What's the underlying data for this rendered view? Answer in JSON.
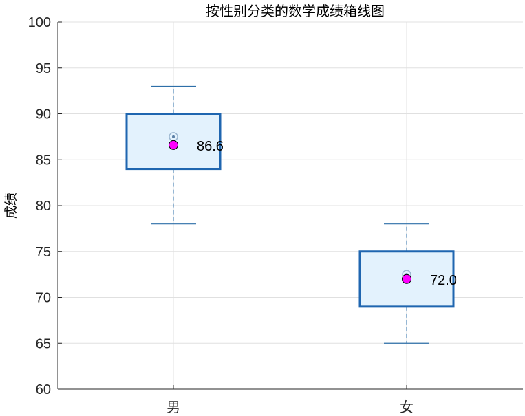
{
  "chart_data": {
    "type": "box",
    "title": "按性别分类的数学成绩箱线图",
    "xlabel": "",
    "ylabel": "成绩",
    "ylim": [
      60,
      100
    ],
    "yticks": [
      60,
      65,
      70,
      75,
      80,
      85,
      90,
      95,
      100
    ],
    "ytick_labels": [
      "60",
      "65",
      "70",
      "75",
      "80",
      "85",
      "90",
      "95",
      "100"
    ],
    "grid": true,
    "categories": [
      "男",
      "女"
    ],
    "boxes": [
      {
        "category": "男",
        "whisker_low": 78,
        "q1": 84,
        "median": 87.5,
        "q3": 90,
        "whisker_high": 93,
        "mean": 86.6,
        "mean_label": "86.6"
      },
      {
        "category": "女",
        "whisker_low": 65,
        "q1": 69,
        "median": 72.5,
        "q3": 75,
        "whisker_high": 78,
        "mean": 72.0,
        "mean_label": "72.0"
      }
    ],
    "colors": {
      "box_edge": "#1f66b0",
      "box_fill": "#e3f2fd",
      "whisker": "#2e6fa8",
      "mean_marker": "#ff00ff",
      "grid": "#e0e0e0",
      "axis": "#262626"
    }
  }
}
